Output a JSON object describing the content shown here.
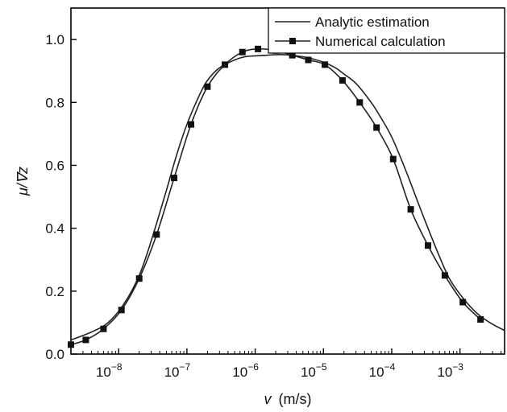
{
  "chart_data": {
    "type": "line",
    "title": "",
    "xlabel": "v (m/s)",
    "xlabel_var": "v",
    "xlabel_unit": "(m/s)",
    "ylabel": "μ/∇z",
    "x_scale": "log",
    "xlim": [
      2e-09,
      0.0045
    ],
    "ylim": [
      0.0,
      1.1
    ],
    "grid": false,
    "legend_position": "top-right",
    "x_ticks": [
      {
        "value": 1e-08,
        "mantissa": "10",
        "exponent": "−8"
      },
      {
        "value": 1e-07,
        "mantissa": "10",
        "exponent": "−7"
      },
      {
        "value": 1e-06,
        "mantissa": "10",
        "exponent": "−6"
      },
      {
        "value": 1e-05,
        "mantissa": "10",
        "exponent": "−5"
      },
      {
        "value": 0.0001,
        "mantissa": "10",
        "exponent": "−4"
      },
      {
        "value": 0.001,
        "mantissa": "10",
        "exponent": "−3"
      }
    ],
    "y_ticks": [
      {
        "value": 0.0,
        "label": "0.0"
      },
      {
        "value": 0.2,
        "label": "0.2"
      },
      {
        "value": 0.4,
        "label": "0.4"
      },
      {
        "value": 0.6,
        "label": "0.6"
      },
      {
        "value": 0.8,
        "label": "0.8"
      },
      {
        "value": 1.0,
        "label": "1.0"
      }
    ],
    "series": [
      {
        "name": "Analytic estimation",
        "color": "#222222",
        "marker": "none",
        "x": [
          2e-09,
          4e-09,
          7e-09,
          1.2e-08,
          2e-08,
          3e-08,
          5e-08,
          7e-08,
          1e-07,
          1.5e-07,
          2e-07,
          3e-07,
          5e-07,
          7e-07,
          1e-06,
          1.5e-06,
          2e-06,
          3e-06,
          5e-06,
          7e-06,
          1e-05,
          1.5e-05,
          2e-05,
          3e-05,
          5e-05,
          7e-05,
          0.0001,
          0.00015,
          0.0002,
          0.0003,
          0.0005,
          0.0007,
          0.001,
          0.0015,
          0.002,
          0.003,
          0.0045
        ],
        "y": [
          0.045,
          0.07,
          0.1,
          0.16,
          0.25,
          0.36,
          0.52,
          0.63,
          0.73,
          0.82,
          0.87,
          0.91,
          0.935,
          0.945,
          0.948,
          0.95,
          0.952,
          0.951,
          0.945,
          0.938,
          0.928,
          0.91,
          0.89,
          0.86,
          0.8,
          0.75,
          0.69,
          0.6,
          0.53,
          0.43,
          0.31,
          0.24,
          0.19,
          0.145,
          0.12,
          0.095,
          0.075
        ]
      },
      {
        "name": "Numerical calculation",
        "color": "#222222",
        "marker": "square",
        "x": [
          2e-09,
          3.3e-09,
          6e-09,
          1.1e-08,
          2e-08,
          3.6e-08,
          6.5e-08,
          1.15e-07,
          2e-07,
          3.6e-07,
          6.5e-07,
          1.1e-06,
          2e-06,
          3.5e-06,
          6e-06,
          1.05e-05,
          1.9e-05,
          3.4e-05,
          6e-05,
          0.000105,
          0.00019,
          0.00034,
          0.0006,
          0.0011,
          0.002
        ],
        "y": [
          0.03,
          0.045,
          0.08,
          0.14,
          0.24,
          0.38,
          0.56,
          0.73,
          0.85,
          0.92,
          0.96,
          0.97,
          0.965,
          0.95,
          0.935,
          0.92,
          0.87,
          0.8,
          0.72,
          0.62,
          0.46,
          0.345,
          0.25,
          0.165,
          0.11
        ]
      }
    ]
  }
}
